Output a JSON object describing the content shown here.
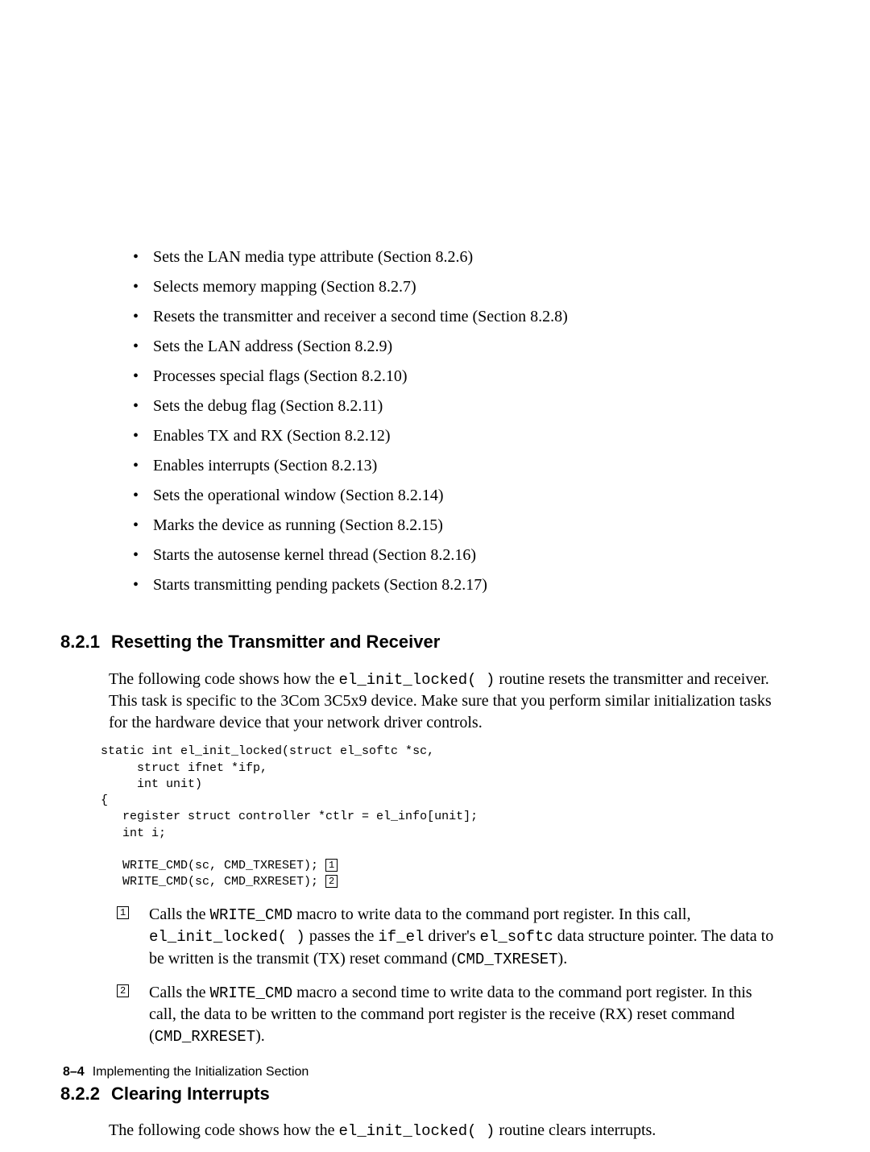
{
  "bullets": [
    "Sets the LAN media type attribute (Section 8.2.6)",
    "Selects memory mapping (Section 8.2.7)",
    "Resets the transmitter and receiver a second time (Section 8.2.8)",
    "Sets the LAN address (Section 8.2.9)",
    "Processes special flags (Section 8.2.10)",
    "Sets the debug flag (Section 8.2.11)",
    "Enables TX and RX (Section 8.2.12)",
    "Enables interrupts (Section 8.2.13)",
    "Sets the operational window (Section 8.2.14)",
    "Marks the device as running (Section 8.2.15)",
    "Starts the autosense kernel thread (Section 8.2.16)",
    "Starts transmitting pending packets (Section 8.2.17)"
  ],
  "sec1": {
    "num": "8.2.1",
    "title": "Resetting the Transmitter and Receiver"
  },
  "sec1_para": {
    "p1a": "The following code shows how the ",
    "p1c": "el_init_locked( )",
    "p1b": " routine resets the transmitter and receiver. This task is specific to the 3Com 3C5x9 device. Make sure that you perform similar initialization tasks for the hardware device that your network driver controls."
  },
  "code": {
    "l1": "static int el_init_locked(struct el_softc *sc,",
    "l2": "     struct ifnet *ifp,",
    "l3": "     int unit)",
    "l4": "{",
    "l5": "   register struct controller *ctlr = el_info[unit];",
    "l6": "   int i;",
    "l7": "",
    "l8": "   WRITE_CMD(sc, CMD_TXRESET); ",
    "l9": "   WRITE_CMD(sc, CMD_RXRESET); ",
    "b1": "1",
    "b2": "2"
  },
  "callouts": {
    "m1": "1",
    "m2": "2",
    "c1": {
      "a": "Calls the ",
      "b": "WRITE_CMD",
      "c": " macro to write data to the command port register. In this call, ",
      "d": "el_init_locked( )",
      "e": " passes the ",
      "f": "if_el",
      "g": " driver's ",
      "h": "el_softc",
      "i": " data structure pointer. The data to be written is the transmit (TX) reset command (",
      "j": "CMD_TXRESET",
      "k": ")."
    },
    "c2": {
      "a": "Calls the ",
      "b": "WRITE_CMD",
      "c": " macro a second time to write data to the command port register. In this call, the data to be written to the command port register is the receive (RX) reset command (",
      "d": "CMD_RXRESET",
      "e": ")."
    }
  },
  "sec2": {
    "num": "8.2.2",
    "title": "Clearing Interrupts"
  },
  "sec2_para": {
    "a": "The following code shows how the ",
    "b": "el_init_locked( )",
    "c": " routine clears interrupts."
  },
  "footer": {
    "page": "8–4",
    "chapter": "Implementing the Initialization Section"
  }
}
